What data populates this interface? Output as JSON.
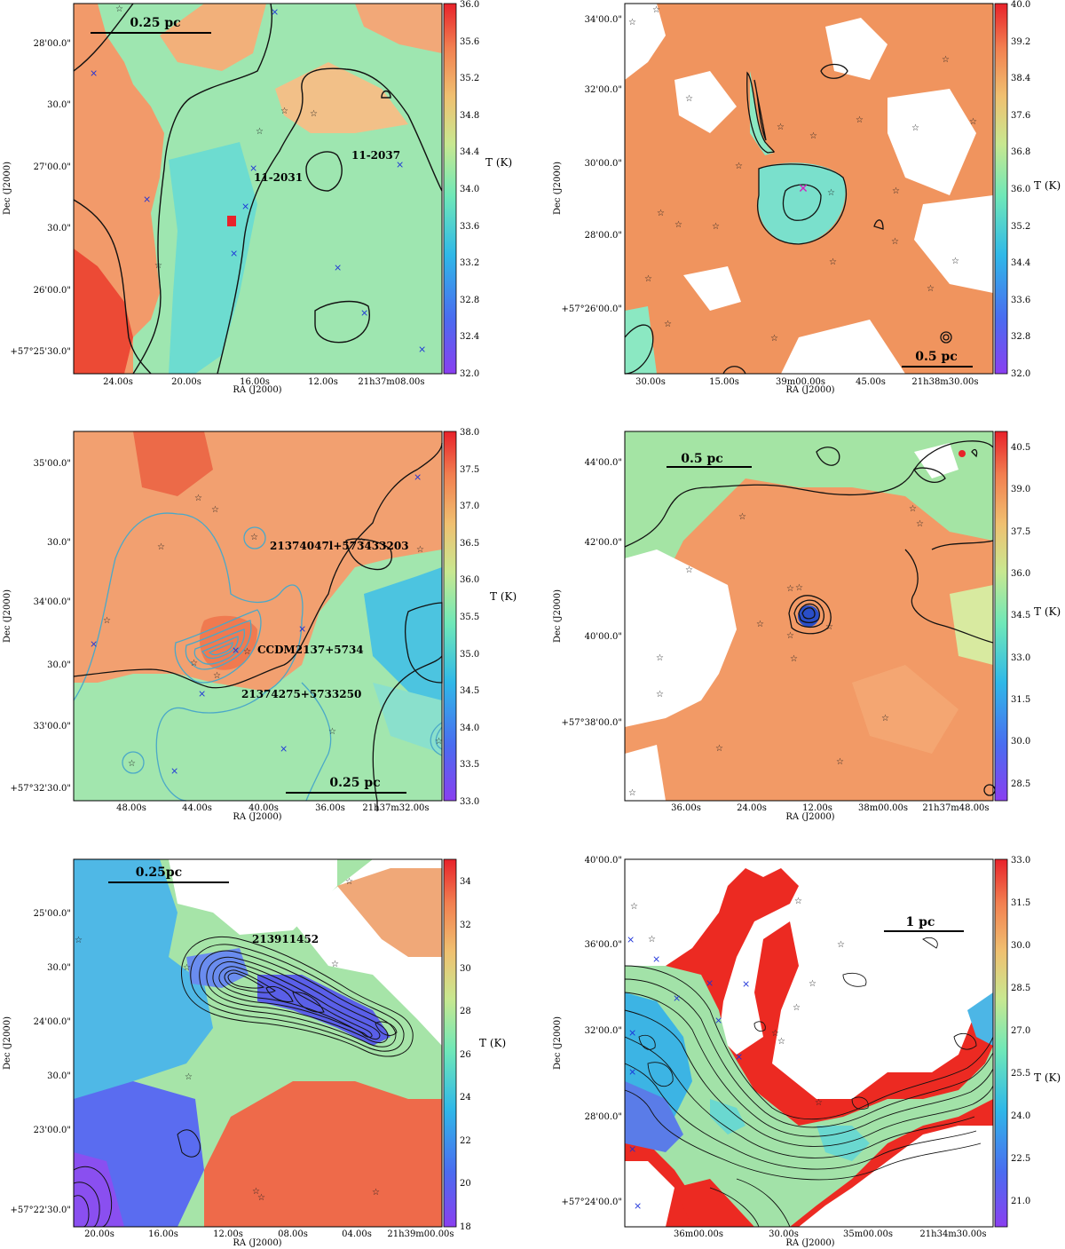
{
  "chart_data": [
    {
      "type": "heatmap",
      "id": "p1",
      "xlabel": "RA (J2000)",
      "ylabel": "Dec (J2000)",
      "xticks": [
        "24.00s",
        "20.00s",
        "16.00s",
        "12.00s",
        "21h37m08.00s"
      ],
      "yticks": [
        "28'00.0\"",
        "30.0\"",
        "27'00.0\"",
        "30.0\"",
        "26'00.0\"",
        "+57°25'30.0\""
      ],
      "colorbar": {
        "label": "T (K)",
        "min": 32.0,
        "max": 36.0,
        "ticks": [
          "36.0",
          "35.6",
          "35.2",
          "34.8",
          "34.4",
          "34.0",
          "33.6",
          "33.2",
          "32.8",
          "32.4",
          "32.0"
        ]
      },
      "scalebar": "0.25 pc",
      "labels": [
        "11-2031",
        "11-2037"
      ]
    },
    {
      "type": "heatmap",
      "id": "p2",
      "xlabel": "RA (J2000)",
      "ylabel": "Dec (J2000)",
      "xticks": [
        "30.00s",
        "15.00s",
        "39m00.00s",
        "45.00s",
        "21h38m30.00s"
      ],
      "yticks": [
        "34'00.0\"",
        "32'00.0\"",
        "30'00.0\"",
        "28'00.0\"",
        "+57°26'00.0\""
      ],
      "colorbar": {
        "label": "T (K)",
        "min": 32.0,
        "max": 40.0,
        "ticks": [
          "40.0",
          "39.2",
          "38.4",
          "37.6",
          "36.8",
          "36.0",
          "35.2",
          "34.4",
          "33.6",
          "32.8",
          "32.0"
        ]
      },
      "scalebar": "0.5 pc",
      "labels": []
    },
    {
      "type": "heatmap",
      "id": "p3",
      "xlabel": "RA (J2000)",
      "ylabel": "Dec (J2000)",
      "xticks": [
        "48.00s",
        "44.00s",
        "40.00s",
        "36.00s",
        "21h37m32.00s"
      ],
      "yticks": [
        "35'00.0\"",
        "30.0\"",
        "34'00.0\"",
        "30.0\"",
        "33'00.0\"",
        "+57°32'30.0\""
      ],
      "colorbar": {
        "label": "T (K)",
        "min": 33.0,
        "max": 38.0,
        "ticks": [
          "38.0",
          "37.5",
          "37.0",
          "36.5",
          "36.0",
          "35.5",
          "35.0",
          "34.5",
          "34.0",
          "33.5",
          "33.0"
        ]
      },
      "scalebar": "0.25 pc",
      "labels": [
        "21374047l+573433203",
        "CCDM2137+5734",
        "21374275+5733250"
      ]
    },
    {
      "type": "heatmap",
      "id": "p4",
      "xlabel": "RA (J2000)",
      "ylabel": "Dec (J2000)",
      "xticks": [
        "36.00s",
        "24.00s",
        "12.00s",
        "38m00.00s",
        "21h37m48.00s"
      ],
      "yticks": [
        "44'00.0\"",
        "42'00.0\"",
        "40'00.0\"",
        "+57°38'00.0\""
      ],
      "colorbar": {
        "label": "T (K)",
        "min": 28.0,
        "max": 41.0,
        "ticks": [
          "40.5",
          "39.0",
          "37.5",
          "36.0",
          "34.5",
          "33.0",
          "31.5",
          "30.0",
          "28.5"
        ]
      },
      "scalebar": "0.5 pc",
      "labels": []
    },
    {
      "type": "heatmap",
      "id": "p5",
      "xlabel": "RA (J2000)",
      "ylabel": "Dec (J2000)",
      "xticks": [
        "20.00s",
        "16.00s",
        "12.00s",
        "08.00s",
        "04.00s",
        "21h39m00.00s"
      ],
      "yticks": [
        "25'00.0\"",
        "30.0\"",
        "24'00.0\"",
        "30.0\"",
        "23'00.0\"",
        "+57°22'30.0\""
      ],
      "colorbar": {
        "label": "T (K)",
        "min": 18,
        "max": 35,
        "ticks": [
          "34",
          "32",
          "30",
          "28",
          "26",
          "24",
          "22",
          "20",
          "18"
        ]
      },
      "scalebar": "0.25pc",
      "labels": [
        "213911452"
      ]
    },
    {
      "type": "heatmap",
      "id": "p6",
      "xlabel": "RA (J2000)",
      "ylabel": "Dec (J2000)",
      "xticks": [
        "36m00.00s",
        "30.00s",
        "35m00.00s",
        "21h34m30.00s"
      ],
      "yticks": [
        "40'00.0\"",
        "36'00.0\"",
        "32'00.0\"",
        "28'00.0\"",
        "+57°24'00.0\""
      ],
      "colorbar": {
        "label": "T (K)",
        "min": 20.0,
        "max": 33.0,
        "ticks": [
          "33.0",
          "31.5",
          "30.0",
          "28.5",
          "27.0",
          "25.5",
          "24.0",
          "22.5",
          "21.0"
        ]
      },
      "scalebar": "1 pc",
      "labels": []
    }
  ]
}
